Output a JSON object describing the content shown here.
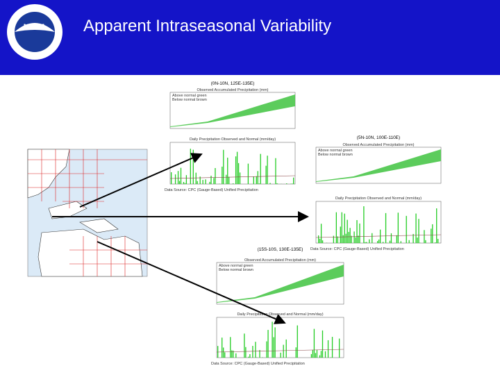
{
  "header": {
    "title": "Apparent Intraseasonal Variability"
  },
  "panels": [
    {
      "region": "(0N-10N, 125E-135E)",
      "accum_title": "Observed Accumulated Precipitation (mm)",
      "legend": [
        "Above normal green",
        "Below normal brown"
      ],
      "daily_title": "Daily Precipitation Observed and Normal (mm/day)",
      "source": "Data Source: CPC (Gauge-Based) Unified Precipitation"
    },
    {
      "region": "(5N-10N, 100E-110E)",
      "accum_title": "Observed Accumulated Precipitation (mm)",
      "legend": [
        "Above normal green",
        "Below normal brown"
      ],
      "daily_title": "Daily Precipitation Observed and Normal (mm/day)",
      "source": "Data Source: CPC (Gauge-Based) Unified Precipitation"
    },
    {
      "region": "(15S-10S, 130E-135E)",
      "accum_title": "Observed Accumulated Precipitation (mm)",
      "legend": [
        "Above normal green",
        "Below normal brown"
      ],
      "daily_title": "Daily Precipitation Observed and Normal (mm/day)",
      "source": "Data Source: CPC (Gauge-Based) Unified Precipitation"
    }
  ]
}
